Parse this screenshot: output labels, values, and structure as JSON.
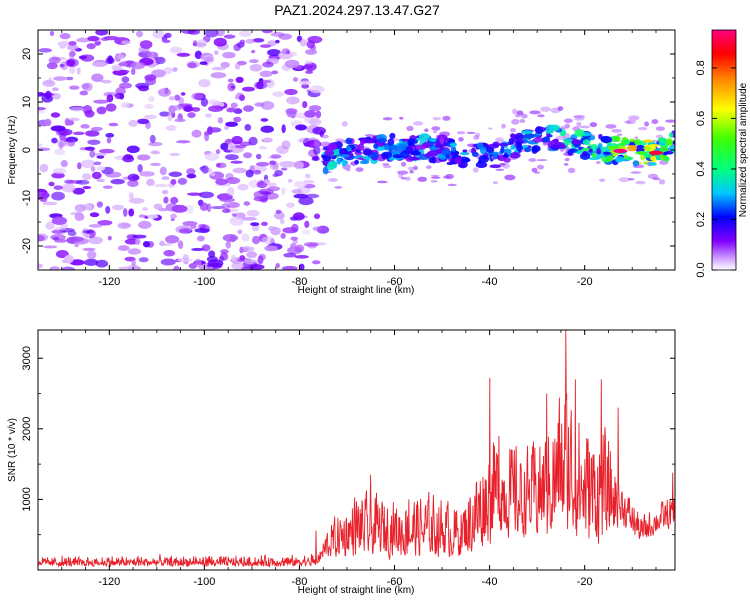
{
  "window_title": "PAZ1.2024.297.13.47.G27",
  "chart_data": [
    {
      "type": "heatmap",
      "title": "PAZ1.2024.297.13.47.G27",
      "xlabel": "Height of straight line (km)",
      "ylabel": "Frequency (Hz)",
      "xlim": [
        -135,
        -1
      ],
      "ylim": [
        -25,
        25
      ],
      "xticks": [
        -120,
        -100,
        -80,
        -60,
        -40,
        -20
      ],
      "xtick_labels": [
        "-120",
        "-100",
        "-80",
        "-60",
        "-40",
        "-20"
      ],
      "yticks": [
        20,
        10,
        0,
        -10,
        -20
      ],
      "ytick_labels": [
        "20",
        "10",
        "0",
        "-10",
        "-20"
      ],
      "colorbar": {
        "label": "Normalized spectral amplitude",
        "range": [
          0,
          0.95
        ],
        "ticks": [
          0.0,
          0.2,
          0.4,
          0.6,
          0.8
        ],
        "tick_labels": [
          "0.0",
          "0.2",
          "0.4",
          "0.6",
          "0.8"
        ],
        "colors": [
          "#ffffff",
          "#c080ff",
          "#6000ff",
          "#0000ff",
          "#00c0ff",
          "#00ff80",
          "#40ff00",
          "#ffff00",
          "#ff8000",
          "#ff0000",
          "#ff0080"
        ]
      },
      "noise_region": {
        "x": [
          -135,
          -75
        ],
        "y": [
          -25,
          25
        ],
        "amplitude_range": [
          0.02,
          0.15
        ]
      },
      "signal_track": [
        {
          "x": -75,
          "y": -2.0,
          "amp": 0.35
        },
        {
          "x": -70,
          "y": -0.5,
          "amp": 0.32
        },
        {
          "x": -65,
          "y": 0.0,
          "amp": 0.3
        },
        {
          "x": -60,
          "y": 0.5,
          "amp": 0.28
        },
        {
          "x": -55,
          "y": 0.5,
          "amp": 0.3
        },
        {
          "x": -50,
          "y": 0.0,
          "amp": 0.3
        },
        {
          "x": -45,
          "y": -1.0,
          "amp": 0.28
        },
        {
          "x": -40,
          "y": -1.5,
          "amp": 0.25
        },
        {
          "x": -35,
          "y": 1.0,
          "amp": 0.32
        },
        {
          "x": -30,
          "y": 2.0,
          "amp": 0.35
        },
        {
          "x": -25,
          "y": 2.5,
          "amp": 0.35
        },
        {
          "x": -20,
          "y": 1.0,
          "amp": 0.4
        },
        {
          "x": -15,
          "y": 0.0,
          "amp": 0.5
        },
        {
          "x": -10,
          "y": -0.3,
          "amp": 0.7
        },
        {
          "x": -5,
          "y": -0.5,
          "amp": 0.6
        },
        {
          "x": -1,
          "y": 1.0,
          "amp": 0.45
        }
      ],
      "peak_spots": [
        {
          "x": -12.5,
          "y": -0.2,
          "amp": 0.95
        },
        {
          "x": -5,
          "y": -0.6,
          "amp": 0.9
        }
      ]
    },
    {
      "type": "line",
      "xlabel": "Height of straight line (km)",
      "ylabel": "SNR (10 * v/v)",
      "xlim": [
        -135,
        -1
      ],
      "ylim": [
        0,
        3400
      ],
      "xticks": [
        -120,
        -100,
        -80,
        -60,
        -40,
        -20
      ],
      "xtick_labels": [
        "-120",
        "-100",
        "-80",
        "-60",
        "-40",
        "-20"
      ],
      "yticks": [
        1000,
        2000,
        3000
      ],
      "ytick_labels": [
        "1000",
        "2000",
        "3000"
      ],
      "line_color": "#e8202a",
      "envelope": [
        {
          "x": -135,
          "lo": 50,
          "hi": 210
        },
        {
          "x": -115,
          "lo": 50,
          "hi": 230
        },
        {
          "x": -95,
          "lo": 50,
          "hi": 220
        },
        {
          "x": -80,
          "lo": 50,
          "hi": 230
        },
        {
          "x": -76,
          "lo": 60,
          "hi": 280
        },
        {
          "x": -74,
          "lo": 150,
          "hi": 700
        },
        {
          "x": -68,
          "lo": 150,
          "hi": 1200
        },
        {
          "x": -60,
          "lo": 150,
          "hi": 1100
        },
        {
          "x": -52,
          "lo": 150,
          "hi": 1200
        },
        {
          "x": -46,
          "lo": 150,
          "hi": 1000
        },
        {
          "x": -42,
          "lo": 200,
          "hi": 1800
        },
        {
          "x": -38,
          "lo": 400,
          "hi": 2200
        },
        {
          "x": -33,
          "lo": 400,
          "hi": 1800
        },
        {
          "x": -28,
          "lo": 400,
          "hi": 2200
        },
        {
          "x": -24,
          "lo": 400,
          "hi": 3000
        },
        {
          "x": -20,
          "lo": 300,
          "hi": 2300
        },
        {
          "x": -16,
          "lo": 250,
          "hi": 2200
        },
        {
          "x": -12,
          "lo": 600,
          "hi": 1300
        },
        {
          "x": -8,
          "lo": 350,
          "hi": 800
        },
        {
          "x": -4,
          "lo": 550,
          "hi": 1000
        },
        {
          "x": -1,
          "lo": 500,
          "hi": 1200
        }
      ],
      "spikes": [
        {
          "x": -76.5,
          "y": 560
        },
        {
          "x": -65,
          "y": 1350
        },
        {
          "x": -57,
          "y": 1000
        },
        {
          "x": -40,
          "y": 2720
        },
        {
          "x": -38,
          "y": 1900
        },
        {
          "x": -28,
          "y": 2500
        },
        {
          "x": -24,
          "y": 3400
        },
        {
          "x": -22,
          "y": 2700
        },
        {
          "x": -16.5,
          "y": 2700
        },
        {
          "x": -13,
          "y": 2300
        },
        {
          "x": -1.5,
          "y": 1380
        }
      ]
    }
  ]
}
